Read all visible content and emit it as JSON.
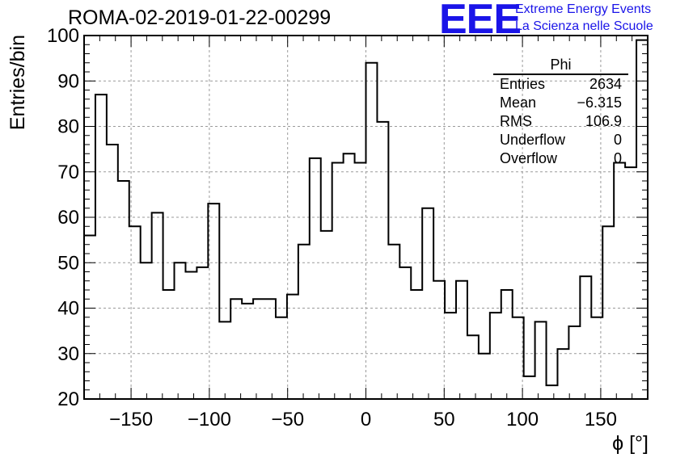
{
  "header": {
    "run_title": "ROMA-02-2019-01-22-00299",
    "logo_text": "EEE",
    "logo_line1": "Extreme Energy Events",
    "logo_line2": "La Scienza nelle Scuole",
    "logo_color": "#1a14e8"
  },
  "stats_box": {
    "title": "Phi",
    "rows": [
      {
        "label": "Entries",
        "value": "2634"
      },
      {
        "label": "Mean",
        "value": "−6.315"
      },
      {
        "label": "RMS",
        "value": "106.9"
      },
      {
        "label": "Underflow",
        "value": "0"
      },
      {
        "label": "Overflow",
        "value": "0"
      }
    ]
  },
  "chart_data": {
    "type": "histogram",
    "xlabel": "ϕ [°]",
    "ylabel": "Entries/bin",
    "xlim": [
      -180,
      180
    ],
    "ylim": [
      20,
      100
    ],
    "grid": true,
    "x_ticks": [
      -150,
      -100,
      -50,
      0,
      50,
      100,
      150
    ],
    "x_tick_labels": [
      "−150",
      "−100",
      "−50",
      "0",
      "50",
      "100",
      "150"
    ],
    "y_ticks": [
      20,
      30,
      40,
      50,
      60,
      70,
      80,
      90,
      100
    ],
    "y_tick_labels": [
      "20",
      "30",
      "40",
      "50",
      "60",
      "70",
      "80",
      "90",
      "100"
    ],
    "bin_edges_start": -180,
    "bin_width": 7.2,
    "values": [
      56,
      87,
      76,
      68,
      58,
      50,
      61,
      44,
      50,
      48,
      49,
      63,
      37,
      42,
      41,
      42,
      42,
      38,
      43,
      54,
      73,
      57,
      72,
      74,
      72,
      94,
      81,
      54,
      49,
      44,
      62,
      46,
      39,
      46,
      34,
      30,
      39,
      44,
      38,
      25,
      37,
      23,
      31,
      36,
      47,
      38,
      58,
      72,
      71,
      99
    ]
  }
}
